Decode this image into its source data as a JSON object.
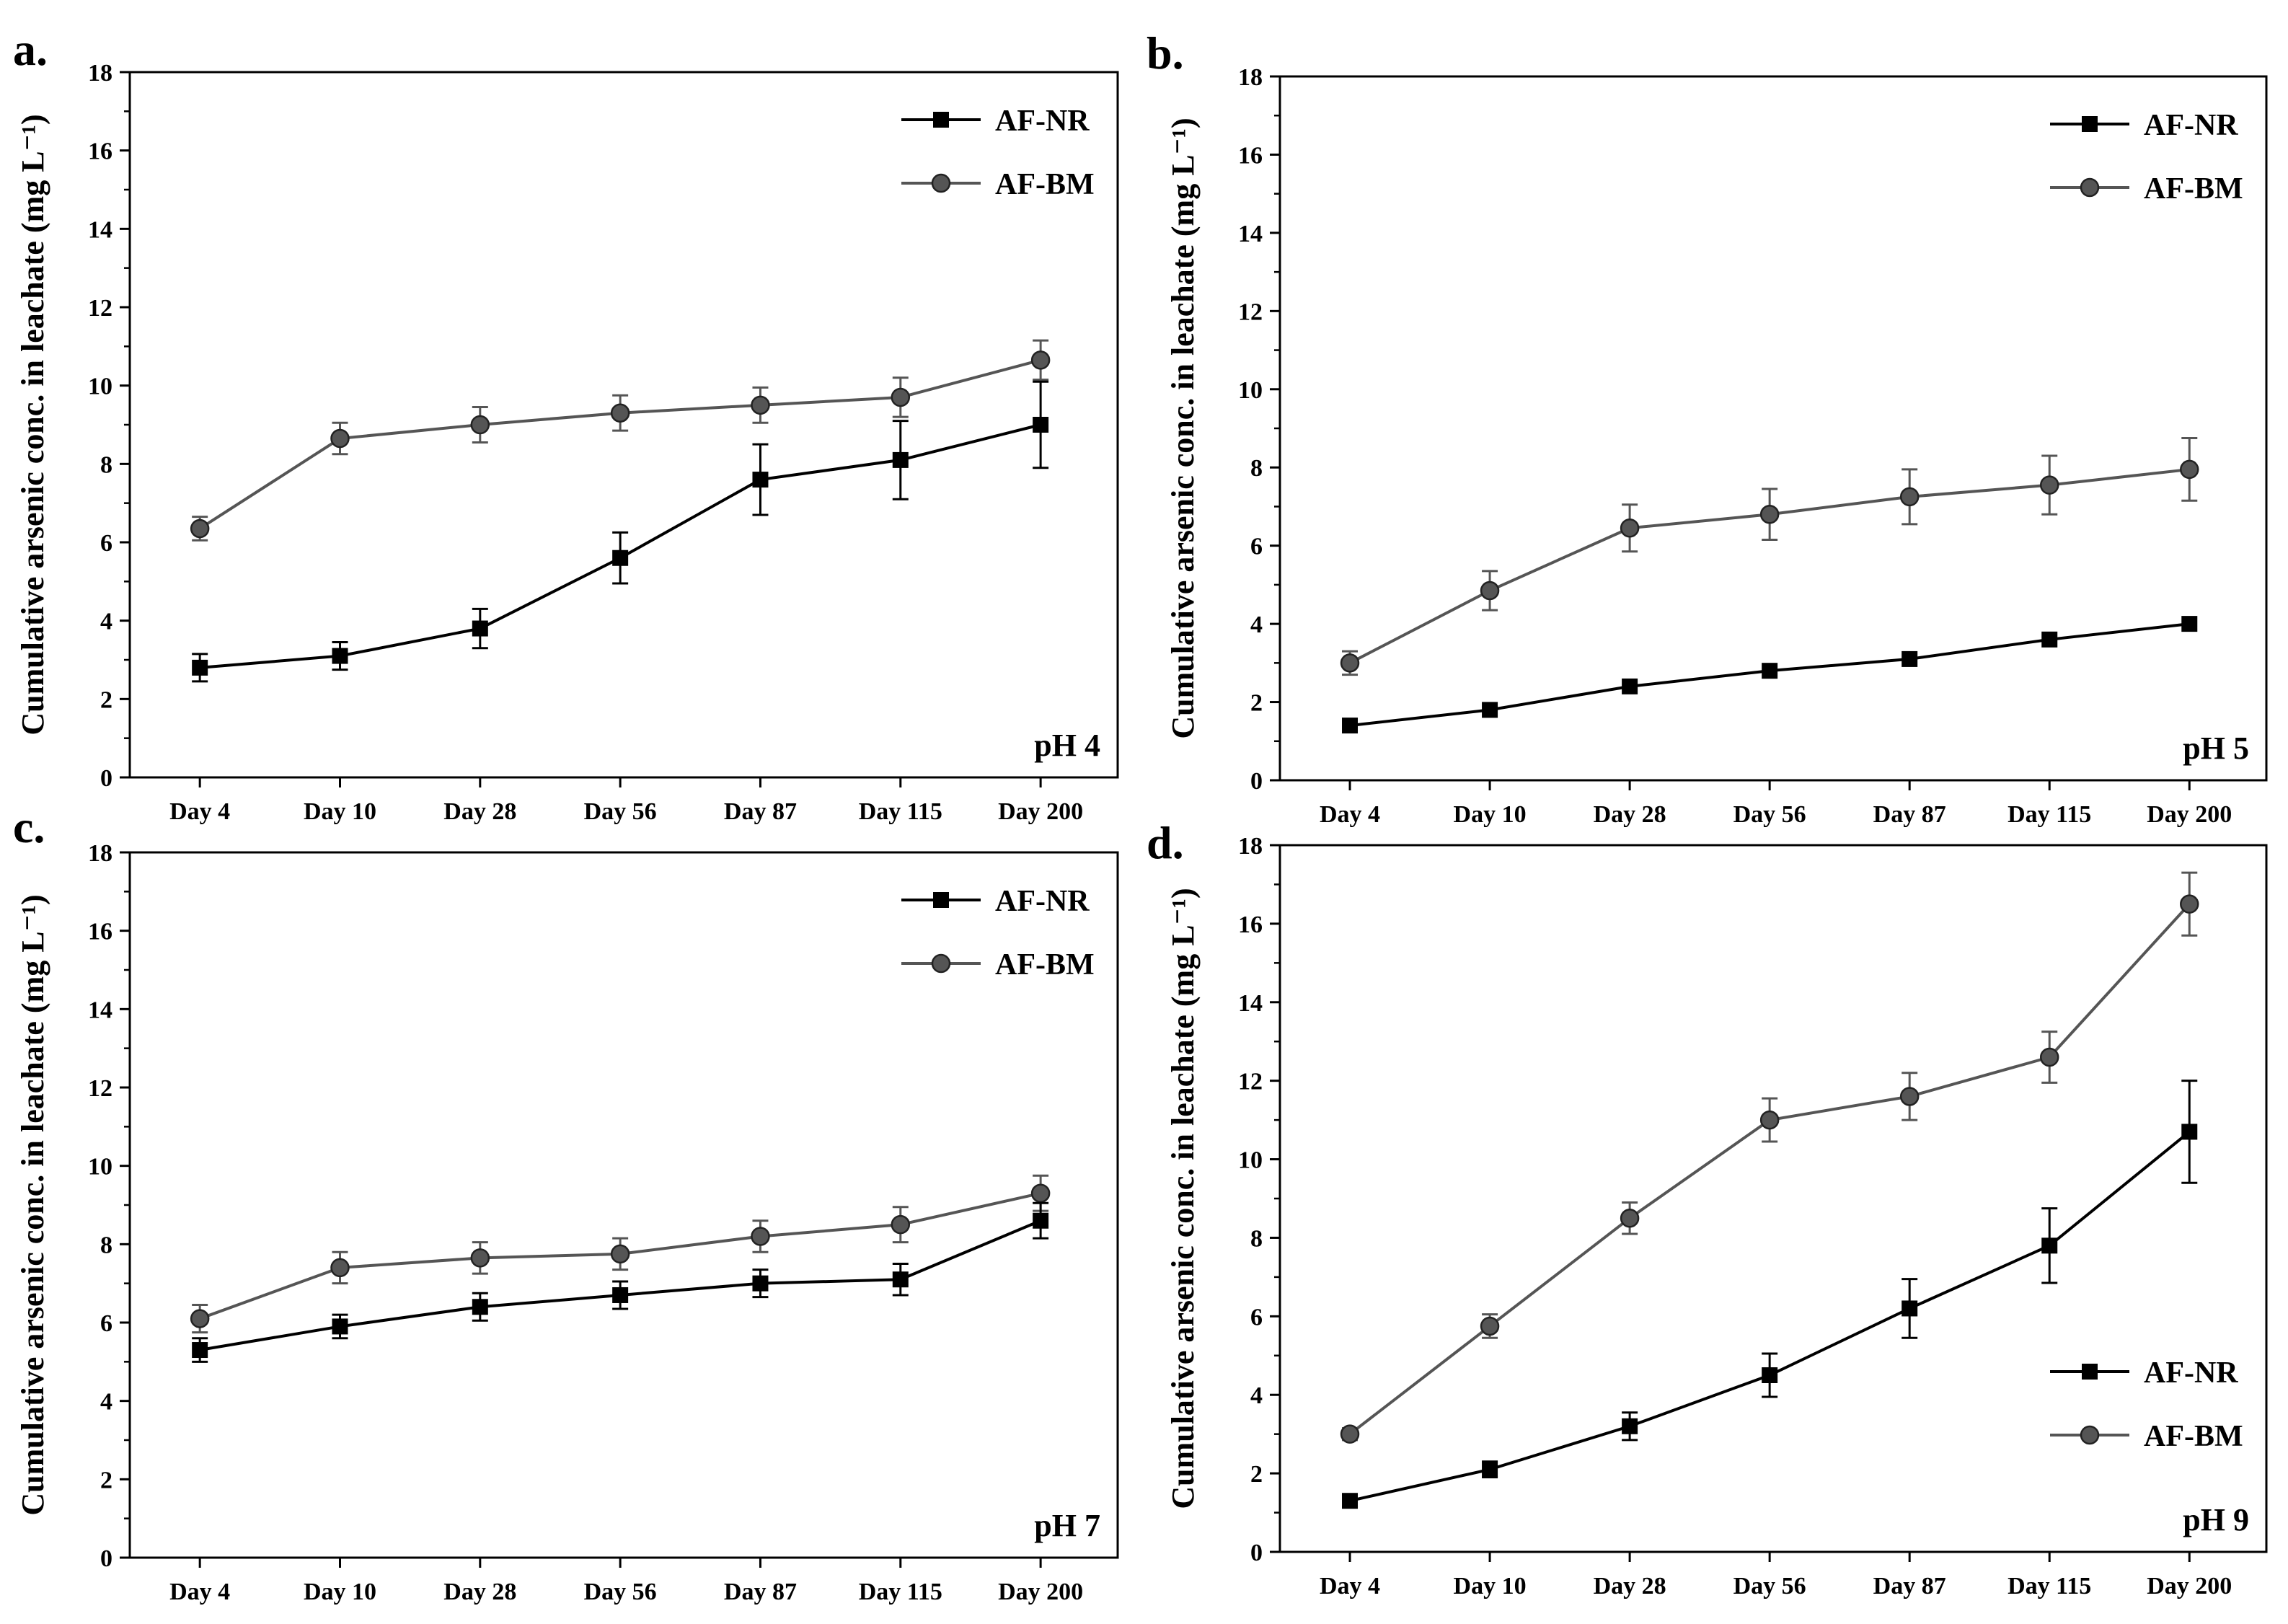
{
  "figure": {
    "layout": "2x2 grid of line charts with error bars"
  },
  "chart_data": [
    {
      "panel_label": "a.",
      "type": "line",
      "condition": "pH 4",
      "ylabel": "Cumulative arsenic conc. in leachate (mg L⁻¹)",
      "xlabel": "",
      "ylim": [
        0,
        18
      ],
      "yticks": [
        0,
        2,
        4,
        6,
        8,
        10,
        12,
        14,
        16,
        18
      ],
      "categories": [
        "Day 4",
        "Day 10",
        "Day 28",
        "Day 56",
        "Day 87",
        "Day 115",
        "Day 200"
      ],
      "legend_position": "top-right",
      "series": [
        {
          "name": "AF-NR",
          "marker": "square",
          "color": "#000000",
          "values": [
            2.8,
            3.1,
            3.8,
            5.6,
            7.6,
            8.1,
            9.0
          ],
          "errors": [
            0.35,
            0.35,
            0.5,
            0.65,
            0.9,
            1.0,
            1.1
          ]
        },
        {
          "name": "AF-BM",
          "marker": "circle",
          "color": "#555555",
          "values": [
            6.35,
            8.65,
            9.0,
            9.3,
            9.5,
            9.7,
            10.65
          ],
          "errors": [
            0.3,
            0.4,
            0.45,
            0.45,
            0.45,
            0.5,
            0.5
          ]
        }
      ]
    },
    {
      "panel_label": "b.",
      "type": "line",
      "condition": "pH 5",
      "ylabel": "Cumulative arsenic conc. in leachate (mg L⁻¹)",
      "xlabel": "",
      "ylim": [
        0,
        18
      ],
      "yticks": [
        0,
        2,
        4,
        6,
        8,
        10,
        12,
        14,
        16,
        18
      ],
      "categories": [
        "Day 4",
        "Day 10",
        "Day 28",
        "Day 56",
        "Day 87",
        "Day 115",
        "Day 200"
      ],
      "legend_position": "top-right",
      "series": [
        {
          "name": "AF-NR",
          "marker": "square",
          "color": "#000000",
          "values": [
            1.4,
            1.8,
            2.4,
            2.8,
            3.1,
            3.6,
            4.0
          ],
          "errors": [
            0,
            0,
            0,
            0,
            0,
            0,
            0
          ]
        },
        {
          "name": "AF-BM",
          "marker": "circle",
          "color": "#555555",
          "values": [
            3.0,
            4.85,
            6.45,
            6.8,
            7.25,
            7.55,
            7.95
          ],
          "errors": [
            0.3,
            0.5,
            0.6,
            0.65,
            0.7,
            0.75,
            0.8
          ]
        }
      ]
    },
    {
      "panel_label": "c.",
      "type": "line",
      "condition": "pH 7",
      "ylabel": "Cumulative arsenic conc. in leachate (mg L⁻¹)",
      "xlabel": "",
      "ylim": [
        0,
        18
      ],
      "yticks": [
        0,
        2,
        4,
        6,
        8,
        10,
        12,
        14,
        16,
        18
      ],
      "categories": [
        "Day 4",
        "Day 10",
        "Day 28",
        "Day 56",
        "Day 87",
        "Day 115",
        "Day 200"
      ],
      "legend_position": "top-right",
      "series": [
        {
          "name": "AF-NR",
          "marker": "square",
          "color": "#000000",
          "values": [
            5.3,
            5.9,
            6.4,
            6.7,
            7.0,
            7.1,
            8.6
          ],
          "errors": [
            0.3,
            0.3,
            0.35,
            0.35,
            0.35,
            0.4,
            0.45
          ]
        },
        {
          "name": "AF-BM",
          "marker": "circle",
          "color": "#555555",
          "values": [
            6.1,
            7.4,
            7.65,
            7.75,
            8.2,
            8.5,
            9.3
          ],
          "errors": [
            0.35,
            0.4,
            0.4,
            0.4,
            0.4,
            0.45,
            0.45
          ]
        }
      ]
    },
    {
      "panel_label": "d.",
      "type": "line",
      "condition": "pH 9",
      "ylabel": "Cumulative arsenic conc. in leachate (mg L⁻¹)",
      "xlabel": "",
      "ylim": [
        0,
        18
      ],
      "yticks": [
        0,
        2,
        4,
        6,
        8,
        10,
        12,
        14,
        16,
        18
      ],
      "categories": [
        "Day 4",
        "Day 10",
        "Day 28",
        "Day 56",
        "Day 87",
        "Day 115",
        "Day 200"
      ],
      "legend_position": "bottom-right",
      "series": [
        {
          "name": "AF-NR",
          "marker": "square",
          "color": "#000000",
          "values": [
            1.3,
            2.1,
            3.2,
            4.5,
            6.2,
            7.8,
            10.7
          ],
          "errors": [
            0.15,
            0.2,
            0.35,
            0.55,
            0.75,
            0.95,
            1.3
          ]
        },
        {
          "name": "AF-BM",
          "marker": "circle",
          "color": "#555555",
          "values": [
            3.0,
            5.75,
            8.5,
            11.0,
            11.6,
            12.6,
            16.5
          ],
          "errors": [
            0.15,
            0.3,
            0.4,
            0.55,
            0.6,
            0.65,
            0.8
          ]
        }
      ]
    }
  ]
}
